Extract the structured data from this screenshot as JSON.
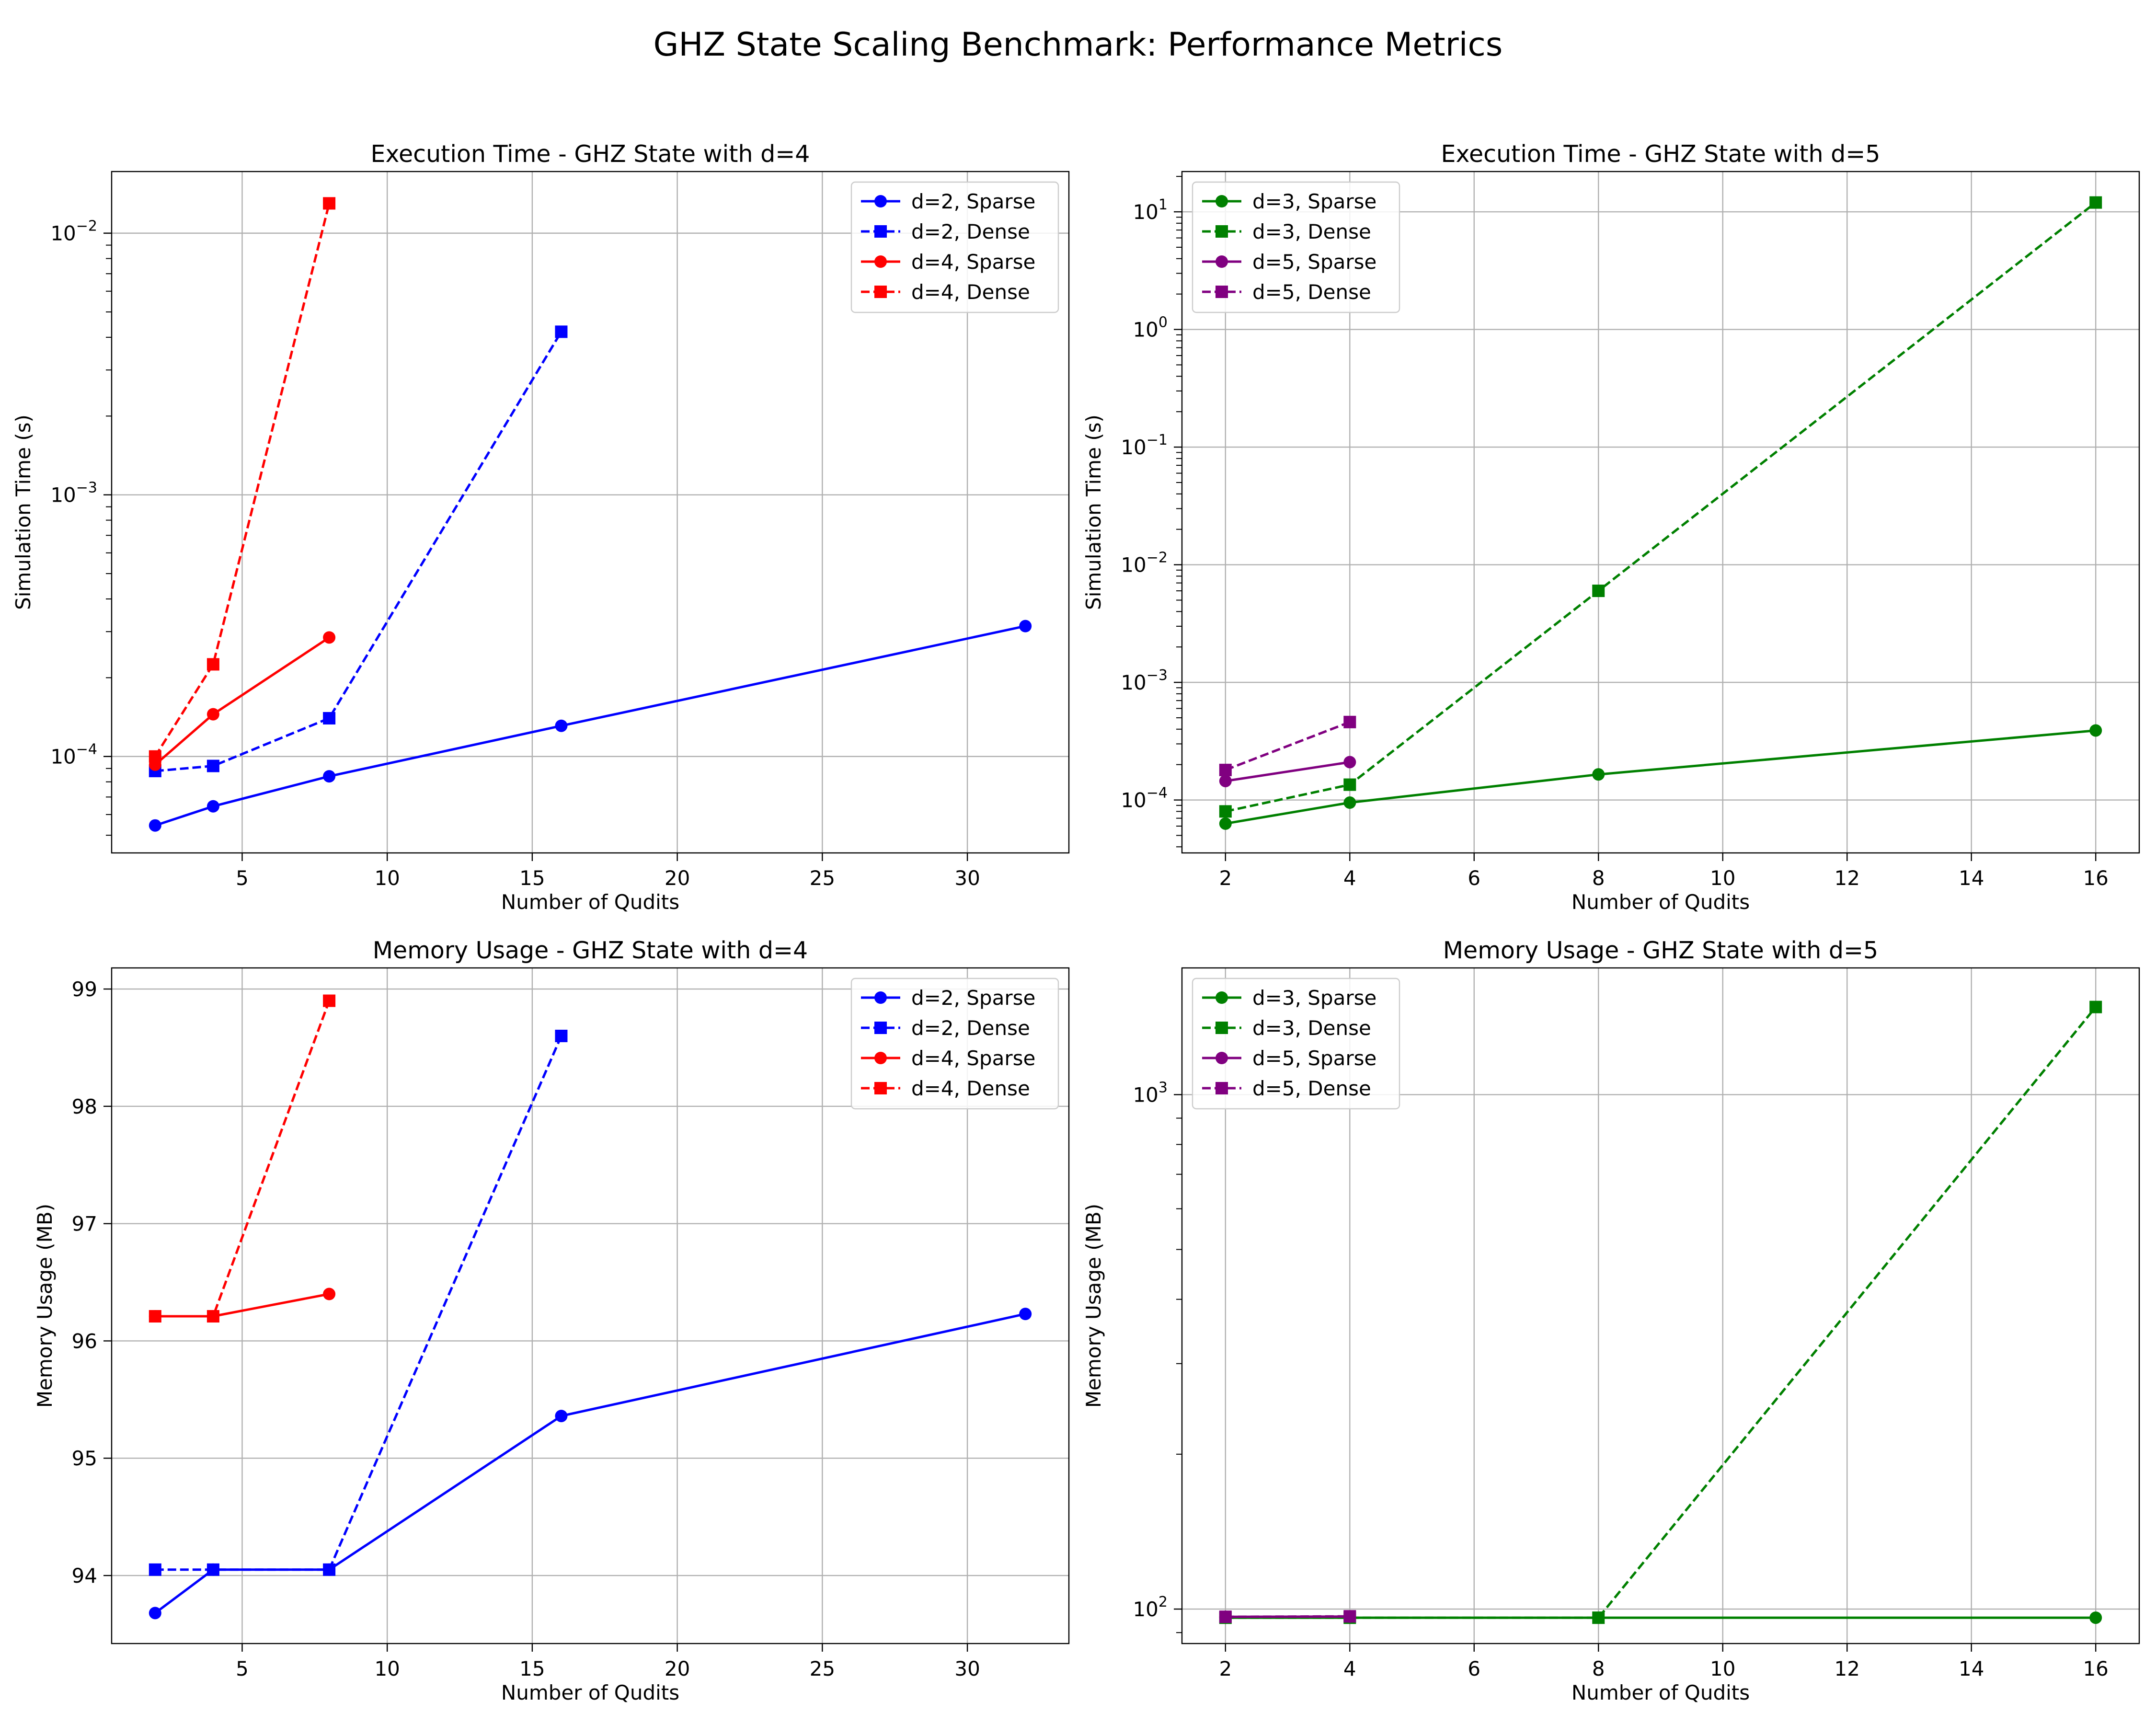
{
  "figure": {
    "title": "GHZ State Scaling Benchmark: Performance Metrics"
  },
  "colors": {
    "blue": "#0000ff",
    "red": "#ff0000",
    "green": "#008000",
    "purple": "#800080",
    "grid": "#b0b0b0"
  },
  "chart_data": [
    {
      "type": "line",
      "title": "Execution Time - GHZ State with d=4",
      "xlabel": "Number of Qudits",
      "ylabel": "Simulation Time (s)",
      "yscale": "log",
      "xlim": [
        0.5,
        33.5
      ],
      "ylim": [
        4.28e-05,
        0.0172
      ],
      "xticks": [
        5,
        10,
        15,
        20,
        25,
        30
      ],
      "yticks": [
        0.0001,
        0.001,
        0.01
      ],
      "ytick_labels": [
        [
          "10",
          "−4"
        ],
        [
          "10",
          "−3"
        ],
        [
          "10",
          "−2"
        ]
      ],
      "grid": true,
      "legend": "upper right",
      "series": [
        {
          "name": "d=2, Sparse",
          "color": "#0000ff",
          "linestyle": "solid",
          "marker": "circle",
          "x": [
            2,
            4,
            8,
            16,
            32
          ],
          "y": [
            5.45e-05,
            6.45e-05,
            8.4e-05,
            0.000131,
            0.000315
          ]
        },
        {
          "name": "d=2, Dense",
          "color": "#0000ff",
          "linestyle": "dashed",
          "marker": "square",
          "x": [
            2,
            4,
            8,
            16
          ],
          "y": [
            8.8e-05,
            9.2e-05,
            0.00014,
            0.0042
          ]
        },
        {
          "name": "d=4, Sparse",
          "color": "#ff0000",
          "linestyle": "solid",
          "marker": "circle",
          "x": [
            2,
            4,
            8
          ],
          "y": [
            9.3e-05,
            0.000145,
            0.000285
          ]
        },
        {
          "name": "d=4, Dense",
          "color": "#ff0000",
          "linestyle": "dashed",
          "marker": "square",
          "x": [
            2,
            4,
            8
          ],
          "y": [
            0.0001,
            0.000225,
            0.013
          ]
        }
      ]
    },
    {
      "type": "line",
      "title": "Execution Time - GHZ State with d=5",
      "xlabel": "Number of Qudits",
      "ylabel": "Simulation Time (s)",
      "yscale": "log",
      "xlim": [
        1.3,
        16.7
      ],
      "ylim": [
        3.55e-05,
        22
      ],
      "xticks": [
        2,
        4,
        6,
        8,
        10,
        12,
        14,
        16
      ],
      "yticks": [
        0.0001,
        0.001,
        0.01,
        0.1,
        1,
        10
      ],
      "ytick_labels": [
        [
          "10",
          "−4"
        ],
        [
          "10",
          "−3"
        ],
        [
          "10",
          "−2"
        ],
        [
          "10",
          "−1"
        ],
        [
          "10",
          "0"
        ],
        [
          "10",
          "1"
        ]
      ],
      "grid": true,
      "legend": "upper left",
      "series": [
        {
          "name": "d=3, Sparse",
          "color": "#008000",
          "linestyle": "solid",
          "marker": "circle",
          "x": [
            2,
            4,
            8,
            16
          ],
          "y": [
            6.3e-05,
            9.5e-05,
            0.000165,
            0.00039
          ]
        },
        {
          "name": "d=3, Dense",
          "color": "#008000",
          "linestyle": "dashed",
          "marker": "square",
          "x": [
            2,
            4,
            8,
            16
          ],
          "y": [
            8e-05,
            0.000135,
            0.006,
            12.0
          ]
        },
        {
          "name": "d=5, Sparse",
          "color": "#800080",
          "linestyle": "solid",
          "marker": "circle",
          "x": [
            2,
            4
          ],
          "y": [
            0.000145,
            0.00021
          ]
        },
        {
          "name": "d=5, Dense",
          "color": "#800080",
          "linestyle": "dashed",
          "marker": "square",
          "x": [
            2,
            4
          ],
          "y": [
            0.00018,
            0.00046
          ]
        }
      ]
    },
    {
      "type": "line",
      "title": "Memory Usage - GHZ State with d=4",
      "xlabel": "Number of Qudits",
      "ylabel": "Memory Usage (MB)",
      "yscale": "linear",
      "xlim": [
        0.5,
        33.5
      ],
      "ylim": [
        93.42,
        99.18
      ],
      "xticks": [
        5,
        10,
        15,
        20,
        25,
        30
      ],
      "yticks": [
        94,
        95,
        96,
        97,
        98,
        99
      ],
      "grid": true,
      "legend": "upper right",
      "series": [
        {
          "name": "d=2, Sparse",
          "color": "#0000ff",
          "linestyle": "solid",
          "marker": "circle",
          "x": [
            2,
            4,
            8,
            16,
            32
          ],
          "y": [
            93.68,
            94.05,
            94.05,
            95.36,
            96.23
          ]
        },
        {
          "name": "d=2, Dense",
          "color": "#0000ff",
          "linestyle": "dashed",
          "marker": "square",
          "x": [
            2,
            4,
            8,
            16
          ],
          "y": [
            94.05,
            94.05,
            94.05,
            98.6
          ]
        },
        {
          "name": "d=4, Sparse",
          "color": "#ff0000",
          "linestyle": "solid",
          "marker": "circle",
          "x": [
            2,
            4,
            8
          ],
          "y": [
            96.21,
            96.21,
            96.4
          ]
        },
        {
          "name": "d=4, Dense",
          "color": "#ff0000",
          "linestyle": "dashed",
          "marker": "square",
          "x": [
            2,
            4,
            8
          ],
          "y": [
            96.21,
            96.21,
            98.9
          ]
        }
      ]
    },
    {
      "type": "line",
      "title": "Memory Usage - GHZ State with d=5",
      "xlabel": "Number of Qudits",
      "ylabel": "Memory Usage (MB)",
      "yscale": "log",
      "xlim": [
        1.3,
        16.7
      ],
      "ylim": [
        85.7,
        1763
      ],
      "xticks": [
        2,
        4,
        6,
        8,
        10,
        12,
        14,
        16
      ],
      "yticks": [
        100,
        1000
      ],
      "ytick_labels": [
        [
          "10",
          "2"
        ],
        [
          "10",
          "3"
        ]
      ],
      "grid": true,
      "legend": "upper left",
      "series": [
        {
          "name": "d=3, Sparse",
          "color": "#008000",
          "linestyle": "solid",
          "marker": "circle",
          "x": [
            2,
            4,
            8,
            16
          ],
          "y": [
            96.2,
            96.2,
            96.2,
            96.2
          ]
        },
        {
          "name": "d=3, Dense",
          "color": "#008000",
          "linestyle": "dashed",
          "marker": "square",
          "x": [
            2,
            4,
            8,
            16
          ],
          "y": [
            96.2,
            96.2,
            96.2,
            1480
          ]
        },
        {
          "name": "d=5, Sparse",
          "color": "#800080",
          "linestyle": "solid",
          "marker": "circle",
          "x": [
            2,
            4
          ],
          "y": [
            96.6,
            96.7
          ]
        },
        {
          "name": "d=5, Dense",
          "color": "#800080",
          "linestyle": "dashed",
          "marker": "square",
          "x": [
            2,
            4
          ],
          "y": [
            96.6,
            96.8
          ]
        }
      ]
    }
  ]
}
